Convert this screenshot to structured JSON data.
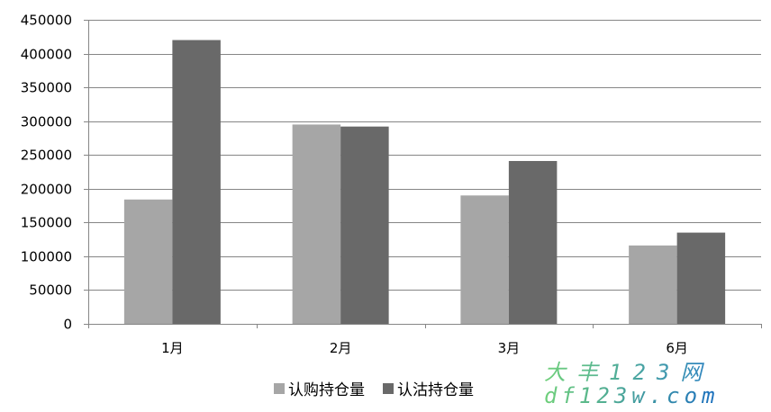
{
  "chart_data": {
    "type": "bar",
    "title": "",
    "xlabel": "",
    "ylabel": "",
    "categories": [
      "1月",
      "2月",
      "3月",
      "6月"
    ],
    "series": [
      {
        "name": "认购持仓量",
        "color": "#a6a6a6",
        "values": [
          184000,
          295000,
          190000,
          116000
        ]
      },
      {
        "name": "认沽持仓量",
        "color": "#696969",
        "values": [
          420000,
          292000,
          241000,
          135000
        ]
      }
    ],
    "ylim": [
      0,
      450000
    ],
    "yticks": [
      "0",
      "50000",
      "100000",
      "150000",
      "200000",
      "250000",
      "300000",
      "350000",
      "400000",
      "450000"
    ],
    "grid": true,
    "legend_position": "bottom"
  },
  "watermark": {
    "line1": "大丰123网",
    "line2": "df123w.com"
  }
}
